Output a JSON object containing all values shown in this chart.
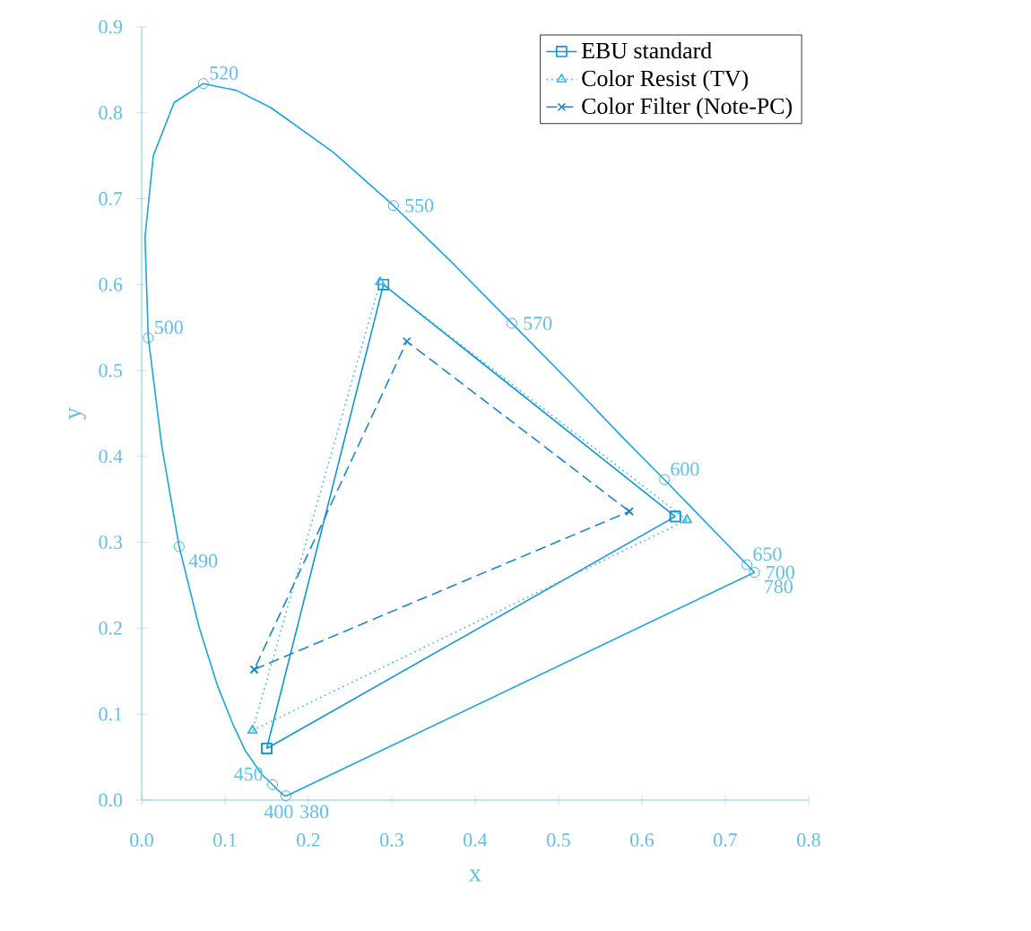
{
  "chart_data": {
    "type": "line",
    "xlabel": "x",
    "ylabel": "y",
    "xlim": [
      0,
      0.8
    ],
    "ylim": [
      0,
      0.9
    ],
    "xticks": [
      {
        "value": 0,
        "label": "0.0"
      },
      {
        "value": 0.1,
        "label": "0.1"
      },
      {
        "value": 0.2,
        "label": "0.2"
      },
      {
        "value": 0.3,
        "label": "0.3"
      },
      {
        "value": 0.4,
        "label": "0.4"
      },
      {
        "value": 0.5,
        "label": "0.5"
      },
      {
        "value": 0.6,
        "label": "0.6"
      },
      {
        "value": 0.7,
        "label": "0.7"
      },
      {
        "value": 0.8,
        "label": "0.8"
      }
    ],
    "yticks": [
      {
        "value": 0,
        "label": "0.0"
      },
      {
        "value": 0.1,
        "label": "0.1"
      },
      {
        "value": 0.2,
        "label": "0.2"
      },
      {
        "value": 0.3,
        "label": "0.3"
      },
      {
        "value": 0.4,
        "label": "0.4"
      },
      {
        "value": 0.5,
        "label": "0.5"
      },
      {
        "value": 0.6,
        "label": "0.6"
      },
      {
        "value": 0.7,
        "label": "0.7"
      },
      {
        "value": 0.8,
        "label": "0.8"
      },
      {
        "value": 0.9,
        "label": "0.9"
      }
    ],
    "legend": "top right",
    "grid": false,
    "series": [
      {
        "color": "#1aa6e0",
        "line_style": "solid",
        "marker": "none",
        "x": [
          0.174,
          0.173,
          0.171,
          0.164,
          0.157,
          0.144,
          0.124,
          0.11,
          0.091,
          0.069,
          0.045,
          0.024,
          0.008,
          0.004,
          0.014,
          0.039,
          0.074,
          0.114,
          0.155,
          0.23,
          0.302,
          0.373,
          0.444,
          0.513,
          0.575,
          0.627,
          0.692,
          0.726,
          0.735,
          0.174
        ],
        "values": [
          0.005,
          0.005,
          0.005,
          0.011,
          0.018,
          0.03,
          0.058,
          0.087,
          0.133,
          0.201,
          0.295,
          0.413,
          0.538,
          0.655,
          0.75,
          0.812,
          0.834,
          0.826,
          0.806,
          0.754,
          0.692,
          0.625,
          0.555,
          0.487,
          0.424,
          0.373,
          0.308,
          0.274,
          0.265,
          0.005
        ]
      },
      {
        "name": "EBU standard",
        "color": "#0e96d8",
        "line_style": "solid",
        "marker": "square",
        "x": [
          0.64,
          0.29,
          0.15,
          0.64
        ],
        "values": [
          0.33,
          0.6,
          0.06,
          0.33
        ]
      },
      {
        "name": "Color Resist (TV)",
        "color": "#36b8ec",
        "line_style": "dotted",
        "marker": "triangle",
        "x": [
          0.654,
          0.286,
          0.133,
          0.654
        ],
        "values": [
          0.326,
          0.603,
          0.081,
          0.326
        ]
      },
      {
        "name": "Color Filter (Note-PC)",
        "color": "#1a86cc",
        "line_style": "dashed",
        "marker": "cross",
        "x": [
          0.585,
          0.318,
          0.135,
          0.585
        ],
        "values": [
          0.336,
          0.534,
          0.152,
          0.336
        ]
      },
      {
        "type": "scatter",
        "color": "#1aa6e0",
        "marker": "circle",
        "x": [
          0.074,
          0.302,
          0.444,
          0.627,
          0.726,
          0.735,
          0.008,
          0.045,
          0.157,
          0.173
        ],
        "values": [
          0.834,
          0.692,
          0.555,
          0.373,
          0.274,
          0.265,
          0.538,
          0.295,
          0.018,
          0.005
        ]
      }
    ],
    "annotations": [
      {
        "text": "520",
        "x": 0.074,
        "y": 0.834
      },
      {
        "text": "550",
        "x": 0.302,
        "y": 0.692
      },
      {
        "text": "570",
        "x": 0.444,
        "y": 0.555
      },
      {
        "text": "600",
        "x": 0.627,
        "y": 0.373
      },
      {
        "text": "650",
        "x": 0.726,
        "y": 0.274
      },
      {
        "text": "700",
        "x": 0.735,
        "y": 0.265
      },
      {
        "text": "780",
        "x": 0.735,
        "y": 0.265
      },
      {
        "text": "500",
        "x": 0.008,
        "y": 0.538
      },
      {
        "text": "490",
        "x": 0.045,
        "y": 0.295
      },
      {
        "text": "450",
        "x": 0.157,
        "y": 0.018
      },
      {
        "text": "400",
        "x": 0.173,
        "y": 0.005
      },
      {
        "text": "380",
        "x": 0.174,
        "y": 0.005
      }
    ]
  }
}
